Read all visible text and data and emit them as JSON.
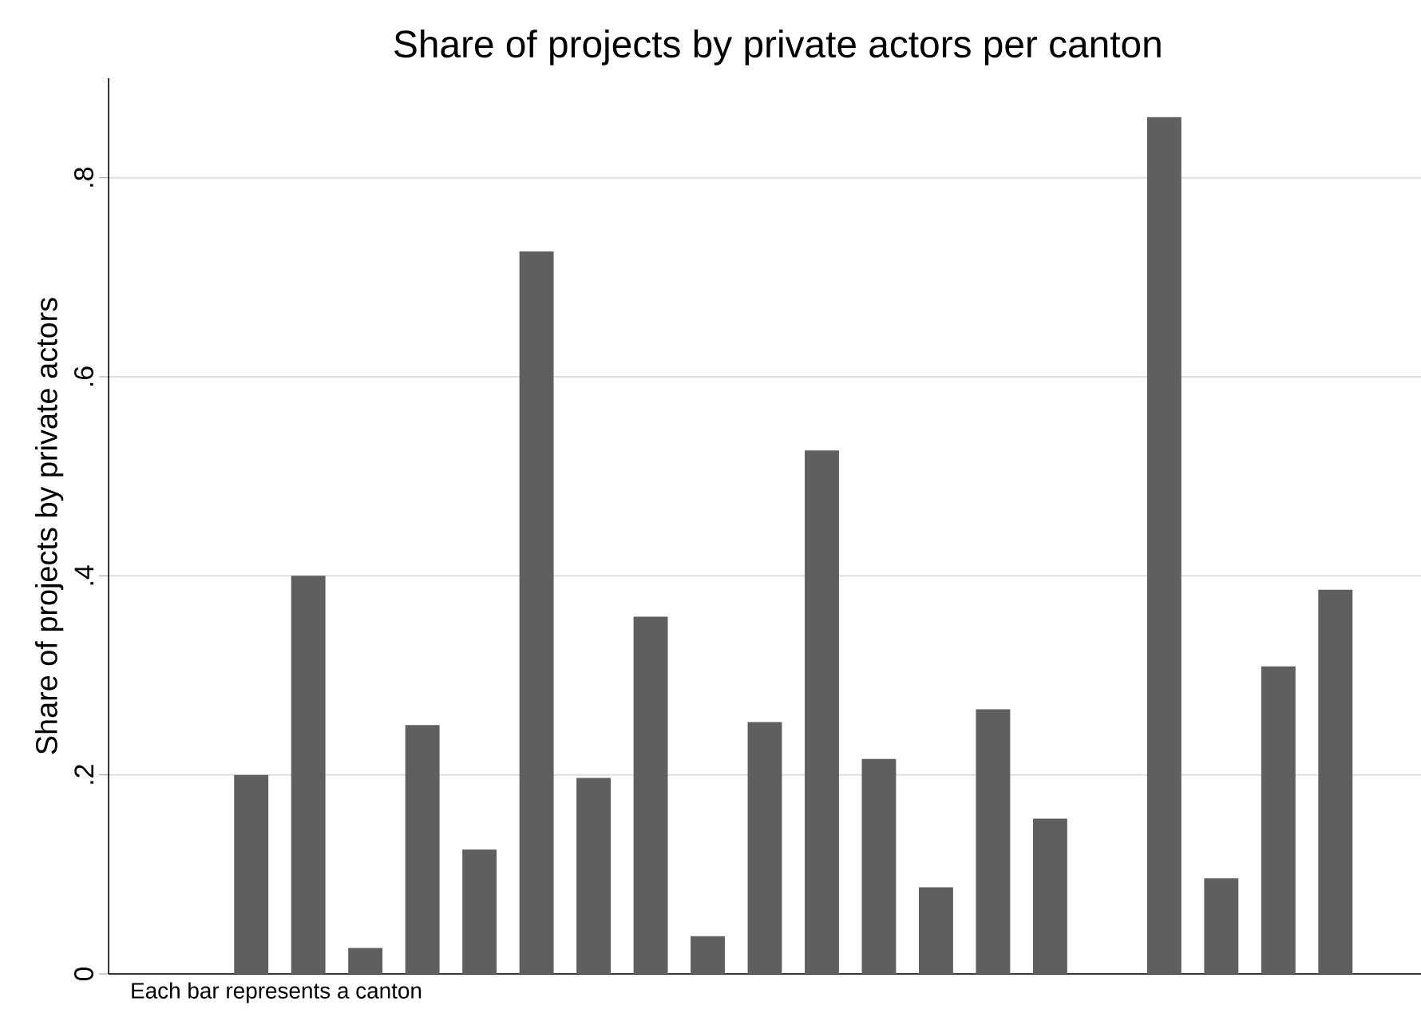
{
  "chart_data": {
    "type": "bar",
    "title": "Share of projects by private actors per canton",
    "ylabel": "Share of projects by private actors",
    "categories": [
      null,
      null,
      null,
      null,
      null,
      null,
      null,
      null,
      null,
      null,
      null,
      null,
      null,
      null,
      null,
      null,
      null,
      null,
      null,
      null,
      null,
      null,
      null
    ],
    "values": [
      null,
      null,
      0.2,
      0.4,
      0.026,
      0.25,
      0.125,
      0.726,
      0.197,
      0.359,
      0.038,
      0.253,
      0.526,
      0.216,
      0.087,
      0.266,
      0.156,
      null,
      0.861,
      0.096,
      0.309,
      0.386,
      null
    ],
    "color": "#5f5f5f",
    "ylim": [
      0,
      0.9
    ],
    "yticks": [
      0,
      {
        "value": 0.2,
        "label": ".2"
      },
      {
        "value": 0.4,
        "label": ".4"
      },
      {
        "value": 0.6,
        "label": ".6"
      },
      {
        "value": 0.8,
        "label": ".8"
      }
    ],
    "grid": "y",
    "annotations": [
      "Each bar represents a canton"
    ]
  }
}
